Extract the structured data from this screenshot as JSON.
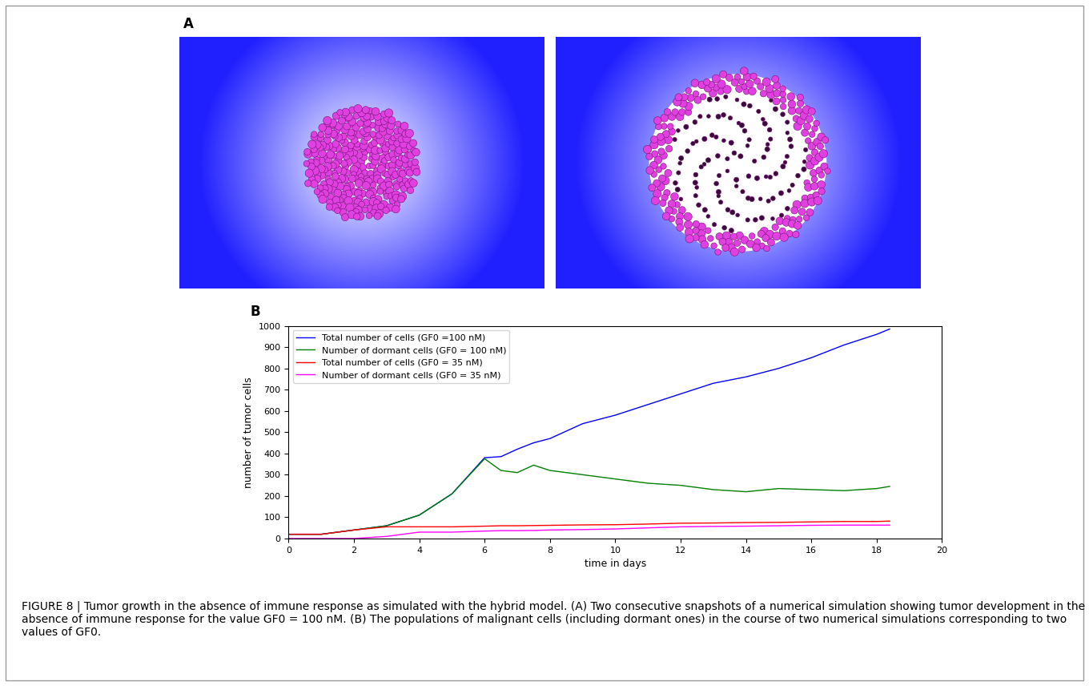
{
  "chart_data": {
    "type": "line",
    "xlabel": "time in days",
    "ylabel": "number of tumor cells",
    "x": [
      0,
      1,
      2,
      3,
      4,
      5,
      6,
      6.5,
      7,
      7.5,
      8,
      9,
      10,
      11,
      12,
      13,
      14,
      15,
      16,
      17,
      18,
      18.4
    ],
    "series": [
      {
        "name": "Total number of cells (GF0 =100 nM)",
        "color": "#0000ff",
        "values": [
          20,
          20,
          40,
          60,
          110,
          210,
          380,
          385,
          420,
          450,
          470,
          540,
          580,
          630,
          680,
          730,
          760,
          800,
          850,
          910,
          960,
          985
        ]
      },
      {
        "name": "Number of dormant cells (GF0 = 100 nM)",
        "color": "#008000",
        "values": [
          20,
          20,
          40,
          60,
          110,
          210,
          375,
          320,
          310,
          345,
          320,
          300,
          280,
          260,
          250,
          230,
          220,
          235,
          230,
          225,
          235,
          245
        ]
      },
      {
        "name": "Total number of cells (GF0 = 35 nM)",
        "color": "#ff0000",
        "values": [
          20,
          20,
          40,
          55,
          55,
          55,
          58,
          60,
          60,
          61,
          62,
          64,
          65,
          68,
          72,
          73,
          75,
          76,
          78,
          80,
          80,
          82
        ]
      },
      {
        "name": "Number of dormant cells (GF0 = 35 nM)",
        "color": "#ff00ff",
        "values": [
          0,
          0,
          0,
          10,
          30,
          30,
          35,
          37,
          37,
          38,
          40,
          42,
          45,
          50,
          55,
          57,
          58,
          60,
          62,
          63,
          63,
          63
        ]
      }
    ],
    "xlim": [
      0,
      20
    ],
    "xticks": [
      0,
      2,
      4,
      6,
      8,
      10,
      12,
      14,
      16,
      18,
      20
    ],
    "ylim": [
      0,
      1000
    ],
    "yticks": [
      0,
      100,
      200,
      300,
      400,
      500,
      600,
      700,
      800,
      900,
      1000
    ],
    "grid": false,
    "legend": "upper left"
  },
  "panel_labels": [
    "A",
    "B"
  ],
  "caption": "FIGURE 8 | Tumor growth in the absence of immune response as simulated with the hybrid model. (A) Two consecutive snapshots of a numerical simulation showing tumor development in the absence of immune response for the value GF0 = 100 nM. (B) The populations of malignant cells (including dormant ones) in the course of two numerical simulations corresponding to two values of GF0."
}
